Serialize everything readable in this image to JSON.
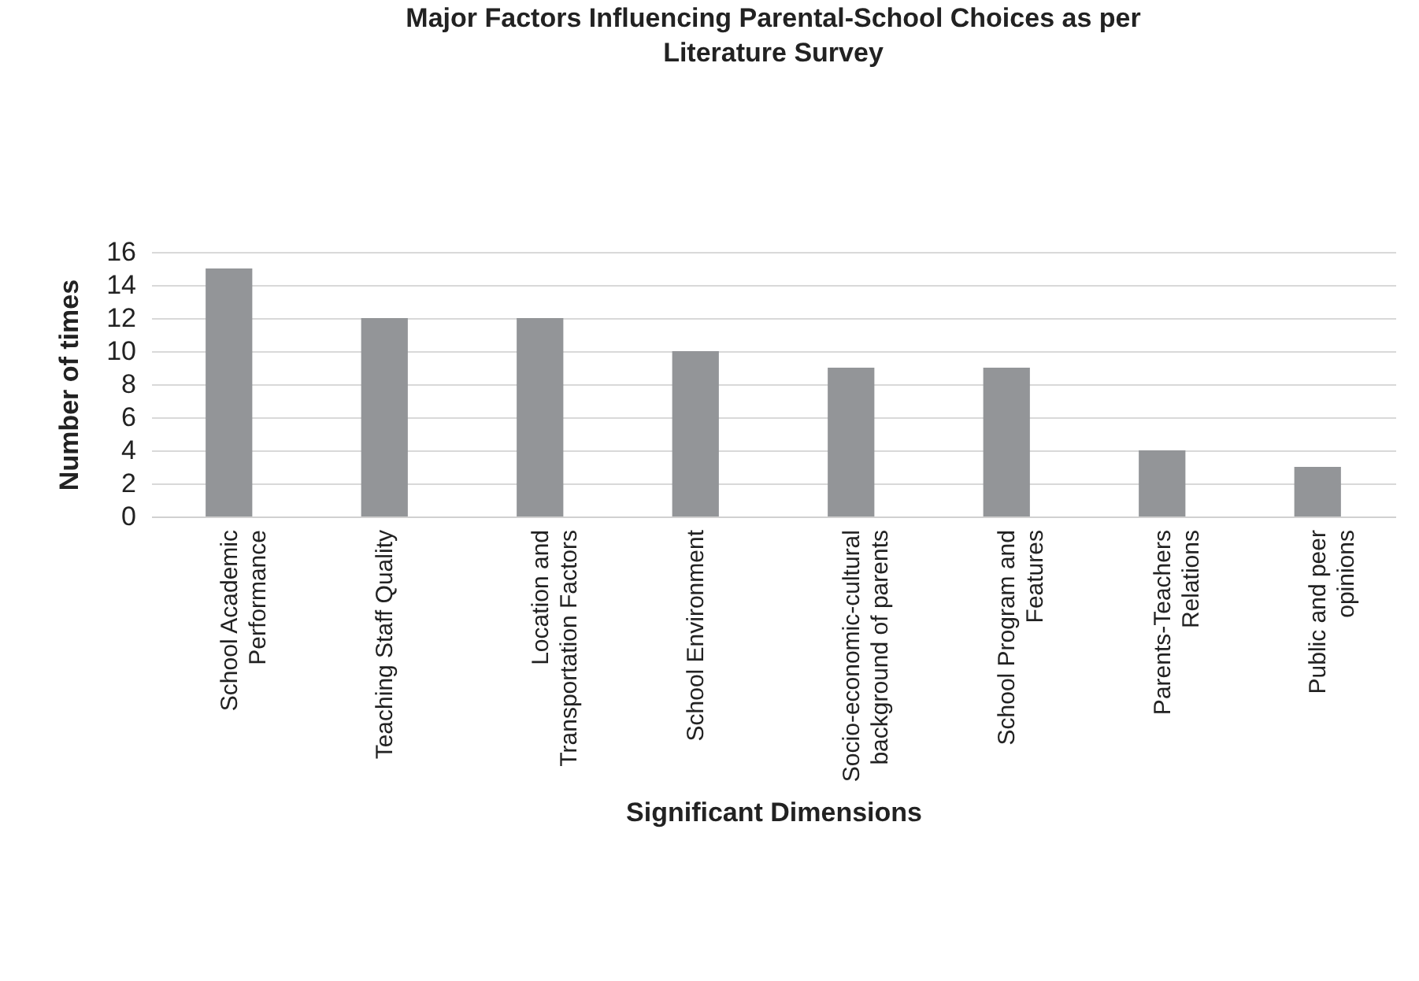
{
  "chart_data": {
    "type": "bar",
    "title": "Major Factors Influencing Parental-School Choices as per Literature Survey",
    "xlabel": "Significant Dimensions",
    "ylabel": "Number of times",
    "categories": [
      "School Academic Performance",
      "Teaching Staff Quality",
      "Location and Transportation Factors",
      "School Environment",
      "Socio-economic-cultural background of parents",
      "School Program and Features",
      "Parents-Teachers Relations",
      "Public and peer opinions"
    ],
    "values": [
      15,
      12,
      12,
      10,
      9,
      9,
      4,
      3
    ],
    "color": "#939598",
    "ylim": [
      0,
      16
    ],
    "yticks": [
      0,
      2,
      4,
      6,
      8,
      10,
      12,
      14,
      16
    ],
    "grid": "y"
  }
}
